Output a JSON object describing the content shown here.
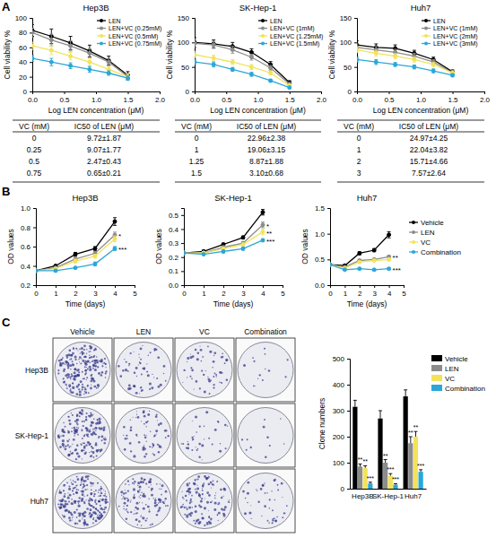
{
  "chart_data": [
    {
      "type": "line",
      "panel_label": "A",
      "title": "Hep3B",
      "x_label": "Log LEN concentration (μM)",
      "y_label": "Cell viability %",
      "x": [
        0,
        0.3,
        0.6,
        0.9,
        1.2,
        1.5
      ],
      "xlim": [
        0,
        2
      ],
      "xticks": [
        {
          "value": 0,
          "label": "0.0"
        },
        0.5,
        {
          "value": 1,
          "label": "1.0"
        },
        1.5,
        {
          "value": 2,
          "label": "2.0"
        }
      ],
      "ylim": [
        0,
        100
      ],
      "yticks": [
        0,
        20,
        40,
        60,
        80,
        100
      ],
      "legend": "upper right",
      "series": [
        {
          "name": "LEN",
          "color": "#000000",
          "values": [
            83,
            75,
            66,
            55,
            42,
            22
          ],
          "errors": [
            8,
            10,
            9,
            8,
            6,
            5
          ]
        },
        {
          "name": "LEN+VC (0.25mM)",
          "color": "#8c8c8c",
          "values": [
            80,
            70,
            62,
            52,
            40,
            20
          ],
          "errors": [
            6,
            8,
            7,
            6,
            5,
            4
          ]
        },
        {
          "name": "LEN+VC (0.5mM)",
          "color": "#f2e35b",
          "values": [
            62,
            56,
            48,
            40,
            30,
            20
          ],
          "errors": [
            5,
            6,
            5,
            5,
            4,
            4
          ]
        },
        {
          "name": "LEN+VC (0.75mM)",
          "color": "#2aa7d8",
          "values": [
            45,
            40,
            35,
            30,
            25,
            18
          ],
          "errors": [
            4,
            5,
            4,
            4,
            3,
            3
          ]
        }
      ],
      "table": {
        "header": [
          "VC (mM)",
          "IC50 of LEN (μM)"
        ],
        "rows": [
          [
            "0",
            "9.72±1.87"
          ],
          [
            "0.25",
            "9.07±1.77"
          ],
          [
            "0.5",
            "2.47±0.43"
          ],
          [
            "0.75",
            "0.65±0.21"
          ]
        ]
      }
    },
    {
      "type": "line",
      "title": "SK-Hep-1",
      "x_label": "Log LEN concentration (μM)",
      "y_label": "Cell viability %",
      "x": [
        0,
        0.3,
        0.6,
        0.9,
        1.2,
        1.5
      ],
      "xlim": [
        0,
        2
      ],
      "xticks": [
        {
          "value": 0,
          "label": "0.0"
        },
        0.5,
        {
          "value": 1,
          "label": "1.0"
        },
        1.5,
        {
          "value": 2,
          "label": "2.0"
        }
      ],
      "ylim": [
        0,
        150
      ],
      "yticks": [
        0,
        50,
        100,
        150
      ],
      "legend": "upper right",
      "series": [
        {
          "name": "LEN",
          "color": "#000000",
          "values": [
            100,
            97,
            92,
            80,
            55,
            18
          ],
          "errors": [
            10,
            8,
            8,
            7,
            6,
            4
          ]
        },
        {
          "name": "LEN+VC (1mM)",
          "color": "#8c8c8c",
          "values": [
            98,
            95,
            85,
            70,
            48,
            15
          ],
          "errors": [
            8,
            7,
            7,
            6,
            5,
            3
          ]
        },
        {
          "name": "LEN+VC (1.25mM)",
          "color": "#f2e35b",
          "values": [
            75,
            68,
            60,
            50,
            38,
            12
          ],
          "errors": [
            6,
            6,
            5,
            5,
            4,
            3
          ]
        },
        {
          "name": "LEN+VC (1.5mM)",
          "color": "#2aa7d8",
          "values": [
            60,
            55,
            45,
            35,
            22,
            8
          ],
          "errors": [
            5,
            5,
            4,
            4,
            3,
            2
          ]
        }
      ],
      "table": {
        "header": [
          "VC (mM)",
          "IC50 of LEN (μM)"
        ],
        "rows": [
          [
            "0",
            "22.96±2.38"
          ],
          [
            "1",
            "19.06±3.15"
          ],
          [
            "1.25",
            "8.87±1.88"
          ],
          [
            "1.5",
            "3.10±0.68"
          ]
        ]
      }
    },
    {
      "type": "line",
      "title": "Huh7",
      "x_label": "Log LEN concentration (μM)",
      "y_label": "Cell viability %",
      "x": [
        0,
        0.3,
        0.6,
        0.9,
        1.2,
        1.5
      ],
      "xlim": [
        0,
        2
      ],
      "xticks": [
        {
          "value": 0,
          "label": "0.0"
        },
        0.5,
        {
          "value": 1,
          "label": "1.0"
        },
        1.5,
        {
          "value": 2,
          "label": "2.0"
        }
      ],
      "ylim": [
        0,
        150
      ],
      "yticks": [
        0,
        50,
        100,
        150
      ],
      "legend": "upper right",
      "series": [
        {
          "name": "LEN",
          "color": "#000000",
          "values": [
            95,
            90,
            88,
            78,
            65,
            40
          ],
          "errors": [
            8,
            7,
            7,
            6,
            5,
            4
          ]
        },
        {
          "name": "LEN+VC (1mM)",
          "color": "#8c8c8c",
          "values": [
            90,
            85,
            80,
            72,
            60,
            38
          ],
          "errors": [
            7,
            7,
            6,
            6,
            5,
            4
          ]
        },
        {
          "name": "LEN+VC (2mM)",
          "color": "#f2e35b",
          "values": [
            85,
            78,
            72,
            65,
            55,
            38
          ],
          "errors": [
            6,
            6,
            5,
            5,
            4,
            4
          ]
        },
        {
          "name": "LEN+VC (3mM)",
          "color": "#2aa7d8",
          "values": [
            65,
            60,
            55,
            50,
            42,
            33
          ],
          "errors": [
            5,
            5,
            4,
            4,
            4,
            3
          ]
        }
      ],
      "table": {
        "header": [
          "VC (mM)",
          "IC50 of LEN (μM)"
        ],
        "rows": [
          [
            "0",
            "24.97±4.25"
          ],
          [
            "1",
            "22.04±3.82"
          ],
          [
            "2",
            "15.71±4.66"
          ],
          [
            "3",
            "7.57±2.64"
          ]
        ]
      }
    },
    {
      "type": "line",
      "panel_label": "B",
      "title": "Hep3B",
      "x_label": "Time (days)",
      "y_label": "OD values",
      "x": [
        0,
        1,
        2,
        3,
        4
      ],
      "xlim": [
        0,
        5
      ],
      "xticks": [
        0,
        1,
        2,
        3,
        4,
        5
      ],
      "ylim": [
        0.2,
        1.0
      ],
      "yticks": [
        0.2,
        0.4,
        0.6,
        0.8,
        {
          "value": 1.0,
          "label": "1.0"
        }
      ],
      "series": [
        {
          "color": "#000000",
          "values": [
            0.35,
            0.4,
            0.52,
            0.58,
            0.86
          ],
          "errors": [
            0.01,
            0.01,
            0.02,
            0.02,
            0.04
          ]
        },
        {
          "color": "#8c8c8c",
          "values": [
            0.35,
            0.38,
            0.47,
            0.53,
            0.72
          ],
          "errors": [
            0.01,
            0.01,
            0.02,
            0.02,
            0.03
          ],
          "significance": "*"
        },
        {
          "color": "#f2e35b",
          "values": [
            0.35,
            0.37,
            0.45,
            0.5,
            0.68
          ],
          "errors": [
            0.01,
            0.01,
            0.02,
            0.02,
            0.03
          ]
        },
        {
          "color": "#2aa7d8",
          "values": [
            0.35,
            0.35,
            0.38,
            0.42,
            0.58
          ],
          "errors": [
            0.01,
            0.01,
            0.01,
            0.02,
            0.02
          ],
          "significance": "***"
        }
      ]
    },
    {
      "type": "line",
      "title": "SK-Hep-1",
      "x_label": "Time (days)",
      "y_label": "OD values",
      "x": [
        0,
        1,
        2,
        3,
        4
      ],
      "xlim": [
        0,
        5
      ],
      "xticks": [
        0,
        1,
        2,
        3,
        4,
        5
      ],
      "ylim": [
        0,
        0.55
      ],
      "yticks": [
        {
          "value": 0,
          "label": "0.0"
        },
        0.1,
        0.2,
        0.3,
        0.4,
        0.5
      ],
      "series": [
        {
          "color": "#000000",
          "values": [
            0.23,
            0.24,
            0.29,
            0.34,
            0.52
          ],
          "errors": [
            0.005,
            0.01,
            0.01,
            0.01,
            0.02
          ]
        },
        {
          "color": "#8c8c8c",
          "values": [
            0.23,
            0.23,
            0.27,
            0.3,
            0.43
          ],
          "errors": [
            0.005,
            0.01,
            0.01,
            0.01,
            0.02
          ],
          "significance": "*"
        },
        {
          "color": "#f2e35b",
          "values": [
            0.23,
            0.23,
            0.26,
            0.29,
            0.38
          ],
          "errors": [
            0.005,
            0.01,
            0.01,
            0.01,
            0.02
          ],
          "significance": "**"
        },
        {
          "color": "#2aa7d8",
          "values": [
            0.23,
            0.22,
            0.24,
            0.26,
            0.32
          ],
          "errors": [
            0.005,
            0.005,
            0.01,
            0.01,
            0.01
          ],
          "significance": "***"
        }
      ]
    },
    {
      "type": "line",
      "title": "Huh7",
      "x_label": "Time (days)",
      "y_label": "OD values",
      "x": [
        0,
        1,
        2,
        3,
        4
      ],
      "xlim": [
        0,
        5
      ],
      "xticks": [
        0,
        1,
        2,
        3,
        4,
        5
      ],
      "ylim": [
        0,
        1.5
      ],
      "yticks": [
        {
          "value": 0,
          "label": "0.0"
        },
        0.5,
        {
          "value": 1,
          "label": "1.0"
        },
        1.5
      ],
      "legend": "right",
      "series": [
        {
          "name": "Vehicle",
          "color": "#000000",
          "values": [
            0.4,
            0.38,
            0.62,
            0.68,
            0.98
          ],
          "errors": [
            0.01,
            0.02,
            0.03,
            0.03,
            0.06
          ]
        },
        {
          "name": "LEN",
          "color": "#8c8c8c",
          "values": [
            0.4,
            0.35,
            0.48,
            0.5,
            0.55
          ],
          "errors": [
            0.01,
            0.02,
            0.02,
            0.02,
            0.03
          ],
          "significance": "**"
        },
        {
          "name": "VC",
          "color": "#f2e35b",
          "values": [
            0.4,
            0.33,
            0.45,
            0.48,
            0.5
          ],
          "errors": [
            0.01,
            0.02,
            0.02,
            0.02,
            0.03
          ]
        },
        {
          "name": "Combination",
          "color": "#2aa7d8",
          "values": [
            0.4,
            0.3,
            0.32,
            0.3,
            0.32
          ],
          "errors": [
            0.01,
            0.01,
            0.02,
            0.02,
            0.02
          ],
          "significance": "***"
        }
      ]
    },
    {
      "type": "image_grid",
      "panel_label": "C",
      "rows": [
        "Hep3B",
        "SK-Hep-1",
        "Huh7"
      ],
      "columns": [
        "Vehicle",
        "LEN",
        "VC",
        "Combination"
      ]
    },
    {
      "type": "bar",
      "y_label": "Clone numbers",
      "categories": [
        "Hep3B",
        "SK-Hep-1",
        "Huh7"
      ],
      "ylim": [
        0,
        500
      ],
      "yticks": [
        0,
        100,
        200,
        300,
        400,
        500
      ],
      "legend": "upper right",
      "series": [
        {
          "name": "Vehicle",
          "color": "#000000",
          "values": [
            315,
            270,
            355
          ],
          "errors": [
            25,
            30,
            25
          ]
        },
        {
          "name": "LEN",
          "color": "#8c8c8c",
          "values": [
            85,
            100,
            175
          ],
          "errors": [
            10,
            12,
            25
          ],
          "significance": [
            "**",
            "**",
            "**"
          ]
        },
        {
          "name": "VC",
          "color": "#f2e35b",
          "values": [
            80,
            50,
            200
          ],
          "errors": [
            8,
            8,
            20
          ],
          "significance": [
            "**",
            "***",
            "**"
          ]
        },
        {
          "name": "Combination",
          "color": "#2aa7d8",
          "values": [
            20,
            15,
            65
          ],
          "errors": [
            5,
            4,
            8
          ],
          "significance": [
            "***",
            "***",
            "***"
          ]
        }
      ]
    }
  ]
}
